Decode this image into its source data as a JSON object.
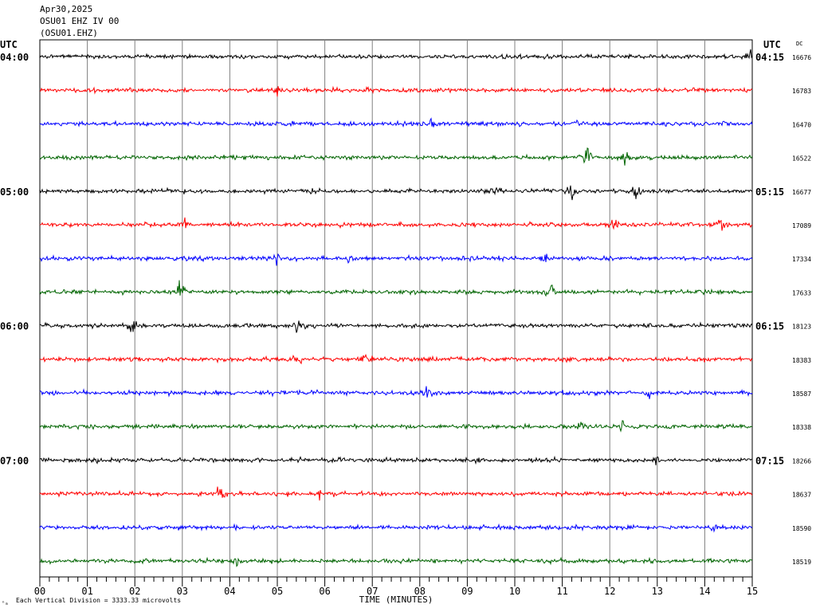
{
  "header": {
    "date": "Apr30,2025",
    "station_line": "OSU01 EHZ IV 00",
    "station_code": "(OSU01.EHZ)"
  },
  "footer": {
    "vertical_division": "Each Vertical Division = 3333.33 microvolts",
    "icon_glyph": "ⁿₘ"
  },
  "chart_data": {
    "type": "line",
    "subtype": "helicorder-seismogram",
    "title": "",
    "xlabel": "TIME (MINUTES)",
    "ylabel": "",
    "left_axis_title": "UTC",
    "right_axis_title": "UTC",
    "right_column_title": "DC",
    "xlim": [
      0,
      15
    ],
    "x_ticks": [
      "00",
      "01",
      "02",
      "03",
      "04",
      "05",
      "06",
      "07",
      "08",
      "09",
      "10",
      "11",
      "12",
      "13",
      "14",
      "15"
    ],
    "x_minor_per_major": 5,
    "grid": true,
    "colors": [
      "#000000",
      "#ff0000",
      "#0000ff",
      "#006400"
    ],
    "rows": [
      {
        "left": "04:00",
        "right": "04:15",
        "dc": "16676",
        "color": "#000000"
      },
      {
        "left": "",
        "right": "",
        "dc": "16783",
        "color": "#ff0000"
      },
      {
        "left": "",
        "right": "",
        "dc": "16470",
        "color": "#0000ff"
      },
      {
        "left": "",
        "right": "",
        "dc": "16522",
        "color": "#006400"
      },
      {
        "left": "05:00",
        "right": "05:15",
        "dc": "16677",
        "color": "#000000"
      },
      {
        "left": "",
        "right": "",
        "dc": "17089",
        "color": "#ff0000"
      },
      {
        "left": "",
        "right": "",
        "dc": "17334",
        "color": "#0000ff"
      },
      {
        "left": "",
        "right": "",
        "dc": "17633",
        "color": "#006400"
      },
      {
        "left": "06:00",
        "right": "06:15",
        "dc": "18123",
        "color": "#000000"
      },
      {
        "left": "",
        "right": "",
        "dc": "18383",
        "color": "#ff0000"
      },
      {
        "left": "",
        "right": "",
        "dc": "18587",
        "color": "#0000ff"
      },
      {
        "left": "",
        "right": "",
        "dc": "18338",
        "color": "#006400"
      },
      {
        "left": "07:00",
        "right": "07:15",
        "dc": "18266",
        "color": "#000000"
      },
      {
        "left": "",
        "right": "",
        "dc": "18637",
        "color": "#ff0000"
      },
      {
        "left": "",
        "right": "",
        "dc": "18590",
        "color": "#0000ff"
      },
      {
        "left": "",
        "right": "",
        "dc": "18519",
        "color": "#006400"
      }
    ],
    "events": [
      {
        "row": 0,
        "minute": 14.95,
        "amplitude": 1.0
      },
      {
        "row": 1,
        "minute": 5.0,
        "amplitude": 0.8
      },
      {
        "row": 2,
        "minute": 8.25,
        "amplitude": 0.8
      },
      {
        "row": 2,
        "minute": 11.35,
        "amplitude": 0.6
      },
      {
        "row": 3,
        "minute": 11.5,
        "amplitude": 1.4
      },
      {
        "row": 3,
        "minute": 12.3,
        "amplitude": 0.9
      },
      {
        "row": 4,
        "minute": 9.6,
        "amplitude": 0.9
      },
      {
        "row": 4,
        "minute": 11.2,
        "amplitude": 1.0
      },
      {
        "row": 4,
        "minute": 12.55,
        "amplitude": 1.0
      },
      {
        "row": 5,
        "minute": 3.05,
        "amplitude": 0.7
      },
      {
        "row": 5,
        "minute": 12.1,
        "amplitude": 0.8
      },
      {
        "row": 5,
        "minute": 14.35,
        "amplitude": 1.1
      },
      {
        "row": 6,
        "minute": 5.0,
        "amplitude": 0.6
      },
      {
        "row": 6,
        "minute": 6.5,
        "amplitude": 0.8
      },
      {
        "row": 6,
        "minute": 10.65,
        "amplitude": 0.6
      },
      {
        "row": 7,
        "minute": 2.95,
        "amplitude": 1.3
      },
      {
        "row": 7,
        "minute": 10.75,
        "amplitude": 0.8
      },
      {
        "row": 8,
        "minute": 1.95,
        "amplitude": 1.2
      },
      {
        "row": 8,
        "minute": 5.45,
        "amplitude": 1.2
      },
      {
        "row": 9,
        "minute": 5.4,
        "amplitude": 0.7
      },
      {
        "row": 9,
        "minute": 6.85,
        "amplitude": 0.6
      },
      {
        "row": 10,
        "minute": 8.15,
        "amplitude": 0.7
      },
      {
        "row": 10,
        "minute": 12.85,
        "amplitude": 0.5
      },
      {
        "row": 11,
        "minute": 11.4,
        "amplitude": 0.5
      },
      {
        "row": 11,
        "minute": 12.25,
        "amplitude": 0.5
      },
      {
        "row": 12,
        "minute": 9.15,
        "amplitude": 0.5
      },
      {
        "row": 12,
        "minute": 12.95,
        "amplitude": 0.5
      },
      {
        "row": 13,
        "minute": 3.8,
        "amplitude": 0.9
      },
      {
        "row": 13,
        "minute": 5.9,
        "amplitude": 0.6
      },
      {
        "row": 14,
        "minute": 14.2,
        "amplitude": 0.4
      },
      {
        "row": 15,
        "minute": 4.15,
        "amplitude": 0.8
      }
    ]
  }
}
